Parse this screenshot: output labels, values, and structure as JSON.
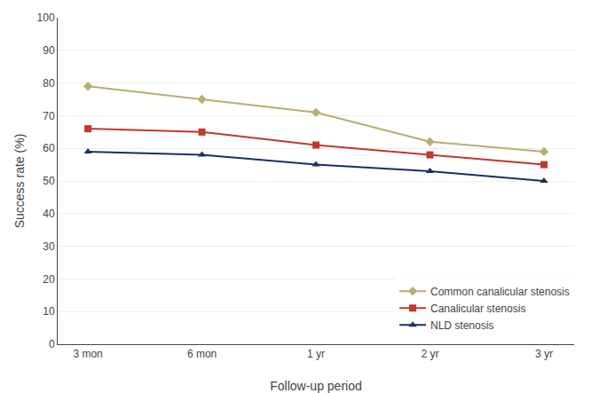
{
  "chart_data": {
    "type": "line",
    "xlabel": "Follow-up period",
    "ylabel": "Success rate (%)",
    "categories": [
      "3 mon",
      "6 mon",
      "1 yr",
      "2 yr",
      "3 yr"
    ],
    "series": [
      {
        "name": "Common canalicular stenosis",
        "color": "#b8ad72",
        "marker": "diamond",
        "values": [
          79,
          75,
          71,
          62,
          59
        ]
      },
      {
        "name": "Canalicular stenosis",
        "color": "#c0392b",
        "marker": "square",
        "values": [
          66,
          65,
          61,
          58,
          55
        ]
      },
      {
        "name": "NLD stenosis",
        "color": "#1a3060",
        "marker": "triangle",
        "values": [
          59,
          58,
          55,
          53,
          50
        ]
      }
    ],
    "ylim": [
      0,
      100
    ],
    "yticks": [
      0,
      10,
      20,
      30,
      40,
      50,
      60,
      70,
      80,
      90,
      100
    ],
    "grid": true,
    "legend": "lower right"
  }
}
